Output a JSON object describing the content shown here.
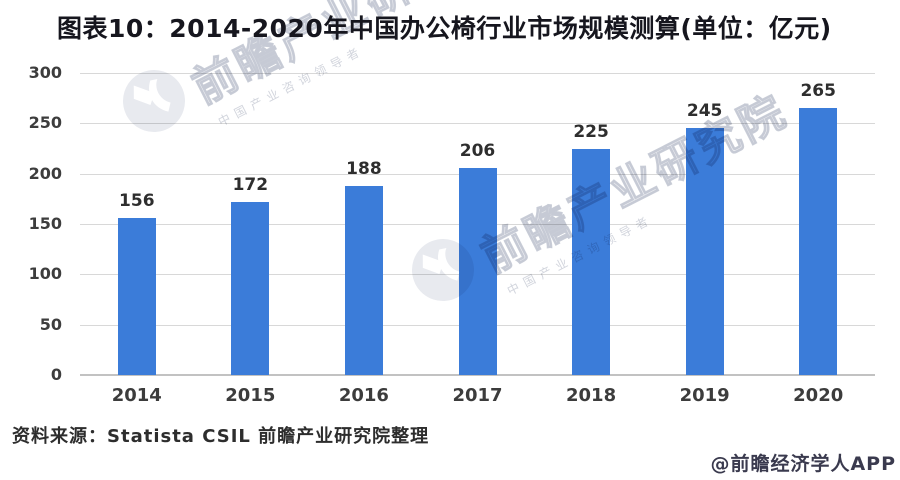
{
  "chart_data": {
    "type": "bar",
    "title": "图表10：2014-2020年中国办公椅行业市场规模测算(单位：亿元)",
    "categories": [
      "2014",
      "2015",
      "2016",
      "2017",
      "2018",
      "2019",
      "2020"
    ],
    "values": [
      156,
      172,
      188,
      206,
      225,
      245,
      265
    ],
    "xlabel": "",
    "ylabel": "",
    "ylim": [
      0,
      300
    ],
    "yticks": [
      0,
      50,
      100,
      150,
      200,
      250,
      300
    ],
    "grid": true,
    "legend": "none",
    "bar_color": "#3b7cd9",
    "value_labels": true
  },
  "footer": {
    "source_note": "资料来源：Statista CSIL 前瞻产业研究院整理",
    "credit": "@前瞻经济学人APP"
  },
  "watermark": {
    "big_text": "前瞻产业研究院",
    "small_text": "中国产业咨询领导者"
  },
  "colors": {
    "bar": "#3b7cd9",
    "gridline": "#d8d8d8",
    "axis_line": "#c2c2c2",
    "title_text": "#16161e",
    "tick_text": "#3c3c3c",
    "value_text": "#2e2e2e",
    "watermark_gray": "#d6d9e2",
    "background": "#ffffff"
  }
}
